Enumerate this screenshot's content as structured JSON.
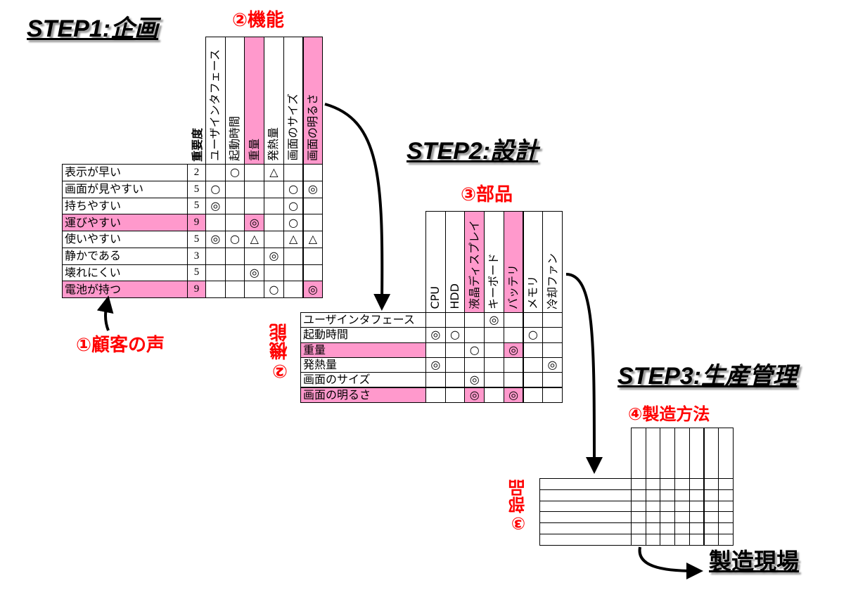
{
  "colors": {
    "highlight": "#ff99cc",
    "label_red": "#ff0000"
  },
  "step1": {
    "title": "STEP1:企画",
    "columns_label": "②機能",
    "rows_label": "①顧客の声",
    "importance_header": "重要度",
    "columns": [
      {
        "label": "ユーザインタフェース",
        "highlight": false
      },
      {
        "label": "起動時間",
        "highlight": false
      },
      {
        "label": "重量",
        "highlight": true
      },
      {
        "label": "発熱量",
        "highlight": false
      },
      {
        "label": "画面のサイズ",
        "highlight": false
      },
      {
        "label": "画面の明るさ",
        "highlight": true
      }
    ],
    "rows": [
      {
        "label": "表示が早い",
        "importance": "2",
        "highlight": false,
        "cells": [
          "",
          "○",
          "",
          "△",
          "",
          ""
        ]
      },
      {
        "label": "画面が見やすい",
        "importance": "5",
        "highlight": false,
        "cells": [
          "○",
          "",
          "",
          "",
          "○",
          "◎"
        ]
      },
      {
        "label": "持ちやすい",
        "importance": "5",
        "highlight": false,
        "cells": [
          "◎",
          "",
          "",
          "",
          "○",
          ""
        ]
      },
      {
        "label": "運びやすい",
        "importance": "9",
        "highlight": true,
        "cells": [
          "",
          "",
          "◎",
          "",
          "○",
          ""
        ],
        "pink_cells": [
          2
        ]
      },
      {
        "label": "使いやすい",
        "importance": "5",
        "highlight": false,
        "cells": [
          "◎",
          "○",
          "△",
          "",
          "△",
          "△"
        ]
      },
      {
        "label": "静かである",
        "importance": "3",
        "highlight": false,
        "cells": [
          "",
          "",
          "",
          "◎",
          "",
          ""
        ]
      },
      {
        "label": "壊れにくい",
        "importance": "5",
        "highlight": false,
        "cells": [
          "",
          "",
          "◎",
          "",
          "",
          ""
        ]
      },
      {
        "label": "電池が持つ",
        "importance": "9",
        "highlight": true,
        "cells": [
          "",
          "",
          "",
          "○",
          "",
          "◎"
        ],
        "pink_cells": [
          5
        ]
      }
    ]
  },
  "step2": {
    "title": "STEP2:設計",
    "columns_label": "③部品",
    "rows_label": "②機能",
    "columns": [
      {
        "label": "CPU",
        "highlight": false
      },
      {
        "label": "HDD",
        "highlight": false
      },
      {
        "label": "液晶ディスプレイ",
        "highlight": true
      },
      {
        "label": "キーボード",
        "highlight": false
      },
      {
        "label": "バッテリ",
        "highlight": true
      },
      {
        "label": "メモリ",
        "highlight": false
      },
      {
        "label": "冷却ファン",
        "highlight": false
      }
    ],
    "rows": [
      {
        "label": "ユーザインタフェース",
        "highlight": false,
        "cells": [
          "",
          "",
          "",
          "◎",
          "",
          "",
          ""
        ]
      },
      {
        "label": "起動時間",
        "highlight": false,
        "cells": [
          "◎",
          "○",
          "",
          "",
          "",
          "○",
          ""
        ]
      },
      {
        "label": "重量",
        "highlight": true,
        "cells": [
          "",
          "",
          "○",
          "",
          "◎",
          "",
          ""
        ],
        "pink_cells": [
          4
        ]
      },
      {
        "label": "発熱量",
        "highlight": false,
        "cells": [
          "◎",
          "",
          "",
          "",
          "",
          "",
          "◎"
        ]
      },
      {
        "label": "画面のサイズ",
        "highlight": false,
        "cells": [
          "",
          "",
          "◎",
          "",
          "",
          "",
          ""
        ]
      },
      {
        "label": "画面の明るさ",
        "highlight": true,
        "cells": [
          "",
          "",
          "◎",
          "",
          "◎",
          "",
          ""
        ],
        "pink_cells": [
          2,
          4
        ]
      }
    ]
  },
  "step3": {
    "title": "STEP3:生産管理",
    "columns_label": "④製造方法",
    "rows_label": "③部品",
    "column_count": 7,
    "row_count": 6
  },
  "destination": "製造現場"
}
